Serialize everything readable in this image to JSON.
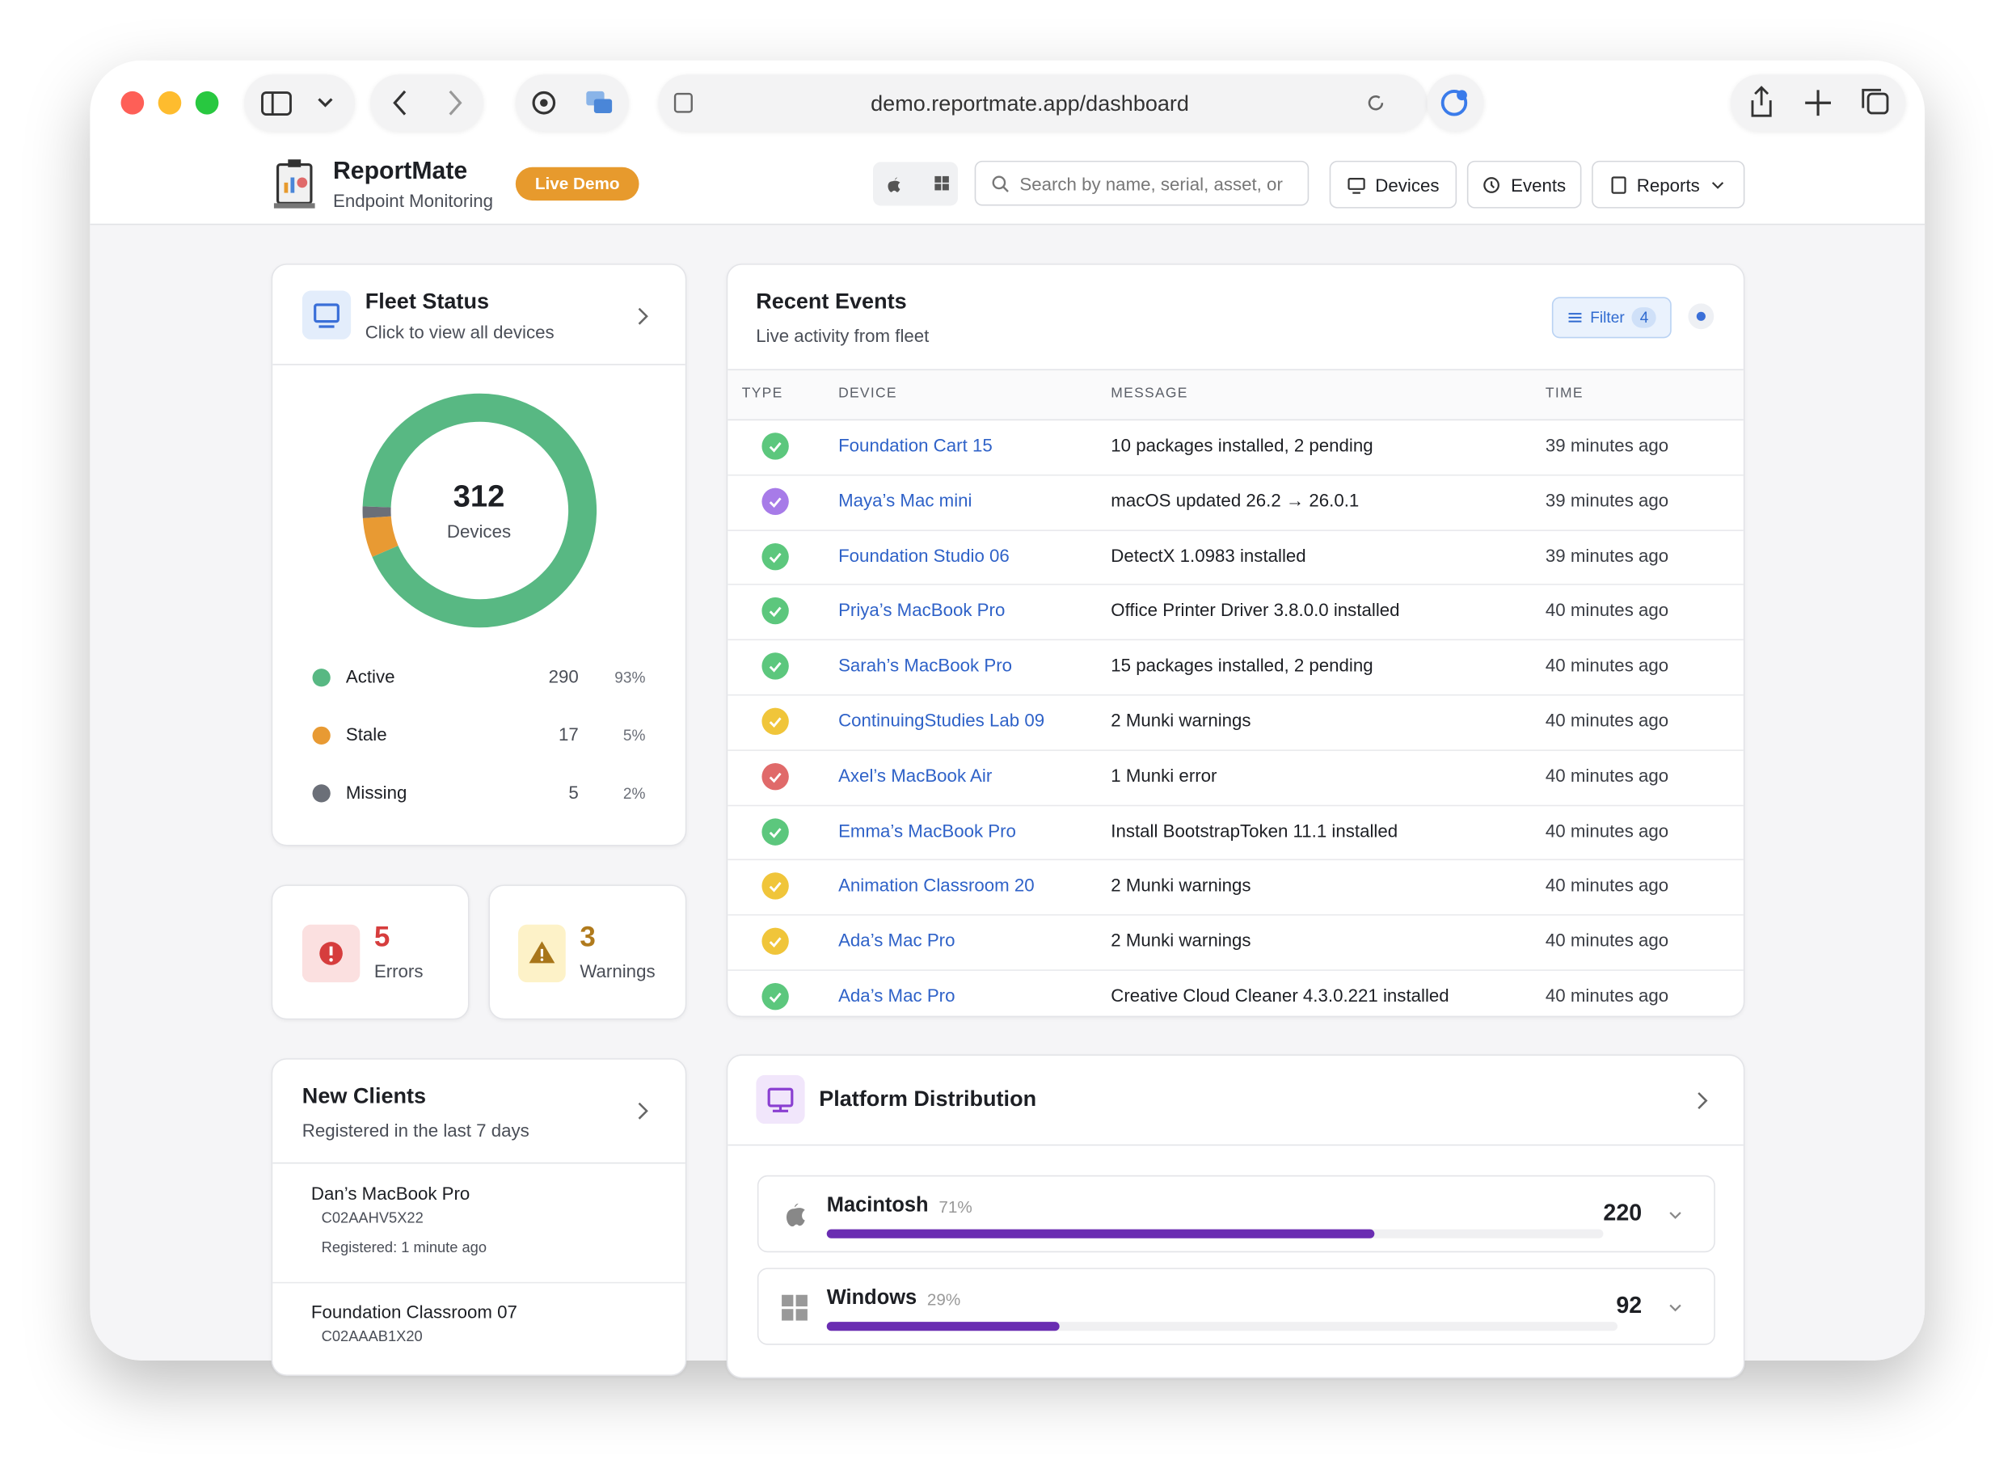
{
  "browser": {
    "url": "demo.reportmate.app/dashboard"
  },
  "header": {
    "title": "ReportMate",
    "subtitle": "Endpoint Monitoring",
    "badge": "Live Demo",
    "search_placeholder": "Search by name, serial, asset, or",
    "nav": [
      "Devices",
      "Events",
      "Reports"
    ]
  },
  "fleet_status": {
    "title": "Fleet Status",
    "subtitle": "Click to view all devices",
    "total": 312,
    "total_label": "Devices",
    "items": [
      {
        "name": "Active",
        "count": 290,
        "percent": "93%",
        "color": "#58b883"
      },
      {
        "name": "Stale",
        "count": 17,
        "percent": "5%",
        "color": "#e89a33"
      },
      {
        "name": "Missing",
        "count": 5,
        "percent": "2%",
        "color": "#6b6f78"
      }
    ]
  },
  "alerts": {
    "errors": {
      "count": 5,
      "label": "Errors"
    },
    "warnings": {
      "count": 3,
      "label": "Warnings"
    }
  },
  "recent_events": {
    "title": "Recent Events",
    "subtitle": "Live activity from fleet",
    "filter_label": "Filter",
    "filter_count": 4,
    "columns": [
      "TYPE",
      "DEVICE",
      "MESSAGE",
      "TIME"
    ],
    "rows": [
      {
        "color": "#5cc77d",
        "device": "Foundation Cart 15",
        "message": "10 packages installed, 2 pending",
        "time": "39 minutes ago"
      },
      {
        "color": "#a77be8",
        "device": "Maya’s Mac mini",
        "message": "macOS updated 26.2 → 26.0.1",
        "time": "39 minutes ago"
      },
      {
        "color": "#5cc77d",
        "device": "Foundation Studio 06",
        "message": "DetectX 1.0983 installed",
        "time": "39 minutes ago"
      },
      {
        "color": "#5cc77d",
        "device": "Priya’s MacBook Pro",
        "message": "Office Printer Driver 3.8.0.0 installed",
        "time": "40 minutes ago"
      },
      {
        "color": "#5cc77d",
        "device": "Sarah’s MacBook Pro",
        "message": "15 packages installed, 2 pending",
        "time": "40 minutes ago"
      },
      {
        "color": "#f0c53a",
        "device": "ContinuingStudies Lab 09",
        "message": "2 Munki warnings",
        "time": "40 minutes ago"
      },
      {
        "color": "#e06a6a",
        "device": "Axel’s MacBook Air",
        "message": "1 Munki error",
        "time": "40 minutes ago"
      },
      {
        "color": "#5cc77d",
        "device": "Emma’s MacBook Pro",
        "message": "Install BootstrapToken 11.1 installed",
        "time": "40 minutes ago"
      },
      {
        "color": "#f0c53a",
        "device": "Animation Classroom 20",
        "message": "2 Munki warnings",
        "time": "40 minutes ago"
      },
      {
        "color": "#f0c53a",
        "device": "Ada’s Mac Pro",
        "message": "2 Munki warnings",
        "time": "40 minutes ago"
      },
      {
        "color": "#5cc77d",
        "device": "Ada’s Mac Pro",
        "message": "Creative Cloud Cleaner 4.3.0.221 installed",
        "time": "40 minutes ago"
      }
    ]
  },
  "new_clients": {
    "title": "New Clients",
    "subtitle": "Registered in the last 7 days",
    "items": [
      {
        "name": "Dan’s MacBook Pro",
        "serial": "C02AAHV5X22",
        "registered": "Registered: 1 minute ago"
      },
      {
        "name": "Foundation Classroom 07",
        "serial": "C02AAAB1X20"
      }
    ]
  },
  "platform_distribution": {
    "title": "Platform Distribution",
    "bar_color": "#6a2db2",
    "items": [
      {
        "name": "Macintosh",
        "percent": "71%",
        "count": 220
      },
      {
        "name": "Windows",
        "percent": "29%",
        "count": 92
      }
    ]
  }
}
